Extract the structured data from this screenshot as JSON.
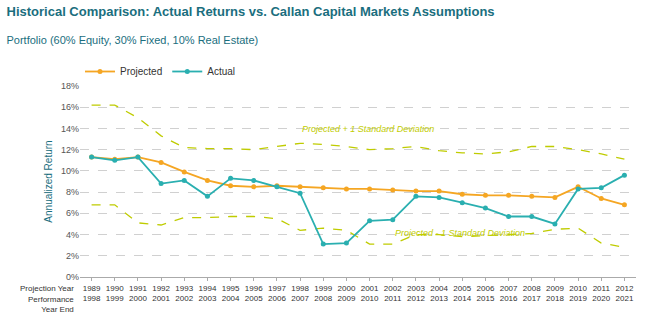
{
  "chart_data": {
    "type": "line",
    "title": "Historical Comparison: Actual Returns vs. Callan Capital Markets Assumptions",
    "subtitle": "Portfolio (60% Equity, 30% Fixed, 10% Real Estate)",
    "ylabel": "Annualized Return",
    "title_color": "#1A6E7E",
    "ylabel_color": "#1A6E7E",
    "tick_color": "#555555",
    "category_label": "Projection Year",
    "categories": [
      1989,
      1990,
      1991,
      1992,
      1993,
      1994,
      1995,
      1996,
      1997,
      1998,
      1999,
      2000,
      2001,
      2002,
      2003,
      2004,
      2005,
      2006,
      2007,
      2008,
      2009,
      2010,
      2011,
      2012
    ],
    "category_label2": "Performance\nYear End",
    "categories2": [
      1998,
      1999,
      2000,
      2001,
      2002,
      2003,
      2004,
      2005,
      2006,
      2007,
      2008,
      2009,
      2010,
      2011,
      2012,
      2013,
      2014,
      2015,
      2016,
      2017,
      2018,
      2019,
      2020,
      2021
    ],
    "bands": [
      {
        "label": "Projected + 1 Standard Deviation",
        "color": "#BFCC00",
        "line_style": "dashed",
        "label_x": 1998,
        "label_y": 13.3,
        "values": [
          16.2,
          16.2,
          15.0,
          13.3,
          12.2,
          12.1,
          12.1,
          12.0,
          12.3,
          12.6,
          12.5,
          12.3,
          12.0,
          12.1,
          12.3,
          11.9,
          11.7,
          11.6,
          11.8,
          12.3,
          12.3,
          12.0,
          11.6,
          11.1
        ]
      },
      {
        "label": "Projected - 1 Standard Deviation",
        "color": "#BFCC00",
        "line_style": "dashed",
        "label_x": 2002,
        "label_y": 3.5,
        "values": [
          6.8,
          6.8,
          5.1,
          4.9,
          5.6,
          5.6,
          5.7,
          5.7,
          5.5,
          4.4,
          4.6,
          4.4,
          3.1,
          3.1,
          4.0,
          4.0,
          3.8,
          3.9,
          4.0,
          4.1,
          4.5,
          4.6,
          3.2,
          2.8
        ]
      }
    ],
    "series": [
      {
        "name": "Projected",
        "color": "#F5A623",
        "marker": "circle",
        "line_style": "solid",
        "values": [
          11.3,
          11.1,
          11.3,
          10.8,
          9.9,
          9.1,
          8.6,
          8.5,
          8.6,
          8.5,
          8.4,
          8.3,
          8.3,
          8.2,
          8.1,
          8.1,
          7.8,
          7.7,
          7.7,
          7.6,
          7.5,
          8.5,
          7.4,
          6.8
        ]
      },
      {
        "name": "Actual",
        "color": "#2AAFB0",
        "marker": "circle",
        "line_style": "solid",
        "values": [
          11.3,
          11.0,
          11.3,
          8.8,
          9.1,
          7.6,
          9.3,
          9.1,
          8.5,
          7.9,
          3.1,
          3.2,
          5.3,
          5.4,
          7.6,
          7.5,
          7.0,
          6.5,
          5.7,
          5.7,
          5.0,
          8.3,
          8.4,
          9.6
        ]
      }
    ],
    "ylim": [
      0,
      18
    ],
    "yticks": [
      {
        "value": 0,
        "label": "0%"
      },
      {
        "value": 2,
        "label": "2%"
      },
      {
        "value": 4,
        "label": "4%"
      },
      {
        "value": 6,
        "label": "6%"
      },
      {
        "value": 8,
        "label": "8%"
      },
      {
        "value": 10,
        "label": "10%"
      },
      {
        "value": 12,
        "label": "12%"
      },
      {
        "value": 14,
        "label": "14%"
      },
      {
        "value": 16,
        "label": "16%"
      },
      {
        "value": 18,
        "label": "18%"
      }
    ],
    "grid": true,
    "legend": "top left"
  }
}
